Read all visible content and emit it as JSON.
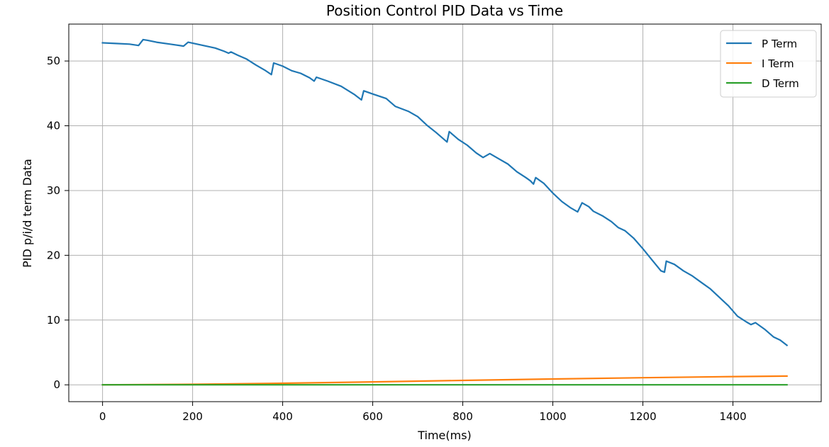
{
  "chart_data": {
    "type": "line",
    "title": "Position Control PID Data vs Time",
    "xlabel": "Time(ms)",
    "ylabel": "PID p/i/d term Data",
    "xlim": [
      -75,
      1596
    ],
    "ylim": [
      -2.6,
      55.7
    ],
    "xticks": [
      0,
      200,
      400,
      600,
      800,
      1000,
      1200,
      1400
    ],
    "yticks": [
      0,
      10,
      20,
      30,
      40,
      50
    ],
    "grid": true,
    "legend_position": "upper right",
    "series": [
      {
        "name": "P Term",
        "color": "#1f77b4",
        "points": [
          [
            0,
            52.8
          ],
          [
            30,
            52.7
          ],
          [
            60,
            52.6
          ],
          [
            80,
            52.4
          ],
          [
            90,
            53.3
          ],
          [
            100,
            53.2
          ],
          [
            120,
            52.9
          ],
          [
            150,
            52.6
          ],
          [
            180,
            52.3
          ],
          [
            190,
            52.9
          ],
          [
            210,
            52.6
          ],
          [
            250,
            52.0
          ],
          [
            270,
            51.5
          ],
          [
            280,
            51.2
          ],
          [
            285,
            51.4
          ],
          [
            300,
            50.9
          ],
          [
            320,
            50.3
          ],
          [
            340,
            49.4
          ],
          [
            360,
            48.6
          ],
          [
            375,
            47.9
          ],
          [
            380,
            49.7
          ],
          [
            400,
            49.2
          ],
          [
            420,
            48.5
          ],
          [
            440,
            48.1
          ],
          [
            460,
            47.4
          ],
          [
            470,
            46.9
          ],
          [
            475,
            47.5
          ],
          [
            500,
            46.9
          ],
          [
            530,
            46.1
          ],
          [
            560,
            44.8
          ],
          [
            575,
            44.0
          ],
          [
            580,
            45.4
          ],
          [
            600,
            44.9
          ],
          [
            630,
            44.2
          ],
          [
            650,
            43.0
          ],
          [
            680,
            42.2
          ],
          [
            700,
            41.4
          ],
          [
            720,
            40.1
          ],
          [
            740,
            39.0
          ],
          [
            765,
            37.5
          ],
          [
            770,
            39.1
          ],
          [
            790,
            37.9
          ],
          [
            810,
            37.0
          ],
          [
            830,
            35.8
          ],
          [
            845,
            35.1
          ],
          [
            860,
            35.7
          ],
          [
            880,
            34.9
          ],
          [
            900,
            34.1
          ],
          [
            920,
            32.9
          ],
          [
            940,
            32.0
          ],
          [
            950,
            31.5
          ],
          [
            957,
            31.0
          ],
          [
            962,
            32.0
          ],
          [
            980,
            31.1
          ],
          [
            1000,
            29.6
          ],
          [
            1020,
            28.3
          ],
          [
            1040,
            27.3
          ],
          [
            1055,
            26.7
          ],
          [
            1065,
            28.1
          ],
          [
            1080,
            27.5
          ],
          [
            1090,
            26.8
          ],
          [
            1110,
            26.1
          ],
          [
            1130,
            25.2
          ],
          [
            1145,
            24.3
          ],
          [
            1160,
            23.8
          ],
          [
            1180,
            22.6
          ],
          [
            1200,
            21.0
          ],
          [
            1220,
            19.3
          ],
          [
            1240,
            17.6
          ],
          [
            1248,
            17.4
          ],
          [
            1252,
            19.1
          ],
          [
            1270,
            18.6
          ],
          [
            1290,
            17.6
          ],
          [
            1310,
            16.8
          ],
          [
            1330,
            15.8
          ],
          [
            1350,
            14.8
          ],
          [
            1370,
            13.5
          ],
          [
            1390,
            12.2
          ],
          [
            1410,
            10.6
          ],
          [
            1430,
            9.7
          ],
          [
            1440,
            9.3
          ],
          [
            1450,
            9.6
          ],
          [
            1470,
            8.6
          ],
          [
            1490,
            7.4
          ],
          [
            1505,
            6.9
          ],
          [
            1520,
            6.1
          ]
        ]
      },
      {
        "name": "I Term",
        "color": "#ff7f0e",
        "points": [
          [
            0,
            0.0
          ],
          [
            200,
            0.08
          ],
          [
            400,
            0.24
          ],
          [
            600,
            0.45
          ],
          [
            800,
            0.68
          ],
          [
            1000,
            0.9
          ],
          [
            1200,
            1.1
          ],
          [
            1400,
            1.27
          ],
          [
            1520,
            1.35
          ]
        ]
      },
      {
        "name": "D Term",
        "color": "#2ca02c",
        "points": [
          [
            0,
            0.0
          ],
          [
            400,
            0.0
          ],
          [
            800,
            0.0
          ],
          [
            1200,
            0.0
          ],
          [
            1520,
            0.0
          ]
        ]
      }
    ]
  }
}
